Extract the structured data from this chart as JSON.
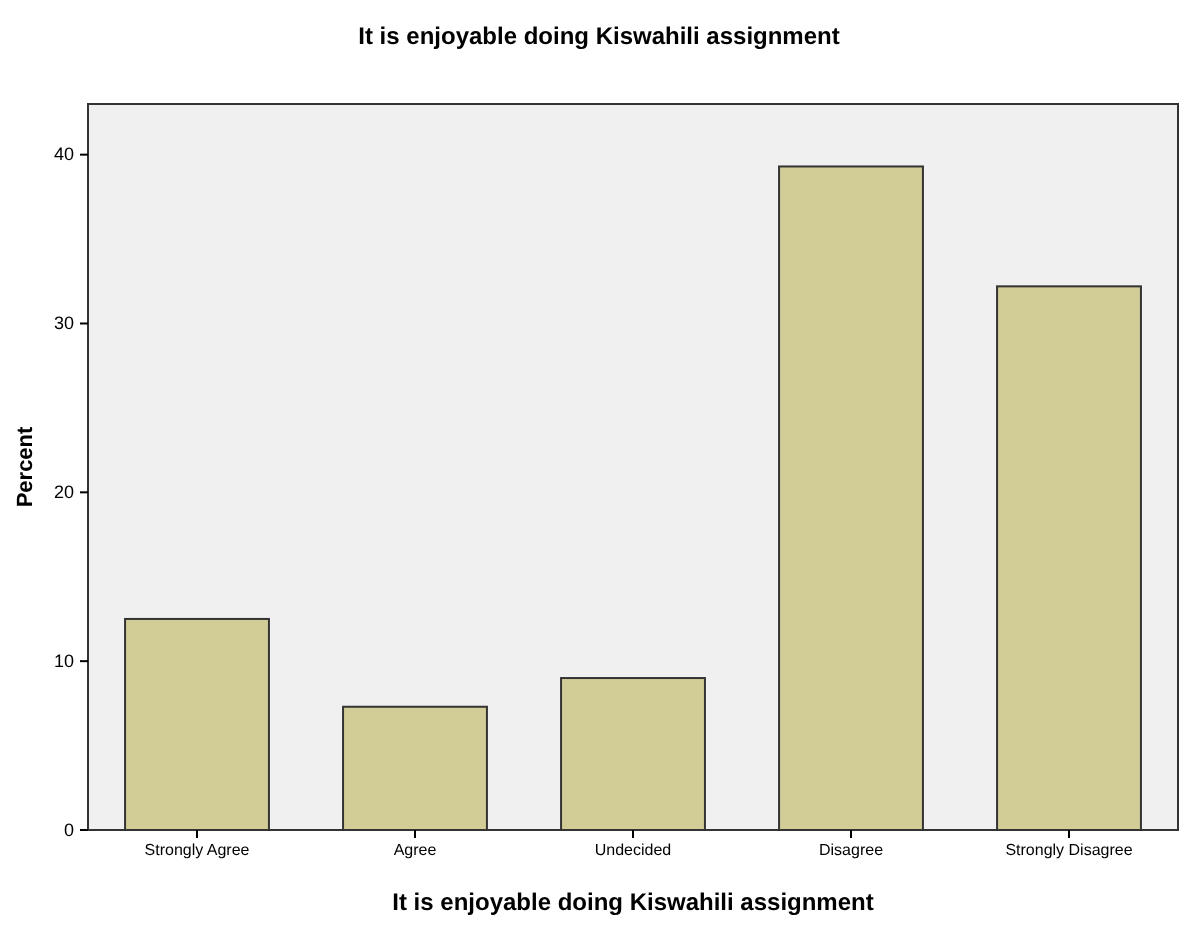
{
  "chart_data": {
    "type": "bar",
    "title": "It is enjoyable doing Kiswahili assignment",
    "xlabel": "It is enjoyable doing Kiswahili assignment",
    "ylabel": "Percent",
    "categories": [
      "Strongly Agree",
      "Agree",
      "Undecided",
      "Disagree",
      "Strongly Disagree"
    ],
    "values": [
      12.5,
      7.3,
      9.0,
      39.3,
      32.2
    ],
    "color": "#d2cc96",
    "ylim": [
      0,
      43
    ],
    "yticks": [
      0,
      10,
      20,
      30,
      40
    ],
    "grid": false
  }
}
